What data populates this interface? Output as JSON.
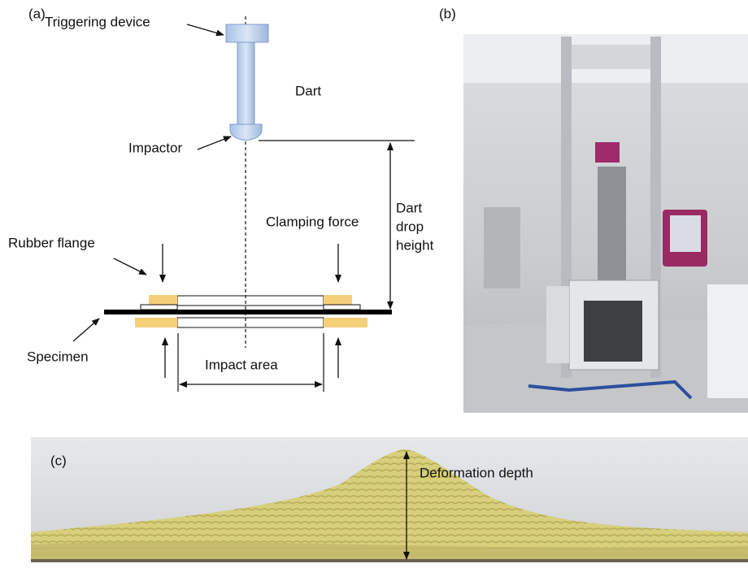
{
  "panel_a": {
    "label": "(a)",
    "triggering_device": "Triggering device",
    "dart": "Dart",
    "impactor": "Impactor",
    "drop_height": [
      "Dart",
      "drop",
      "height"
    ],
    "clamping_force": "Clamping force",
    "rubber_flange": "Rubber flange",
    "specimen": "Specimen",
    "impact_area": "Impact area"
  },
  "panel_b": {
    "label": "(b)"
  },
  "panel_c": {
    "label": "(c)",
    "deformation_depth": "Deformation depth"
  }
}
